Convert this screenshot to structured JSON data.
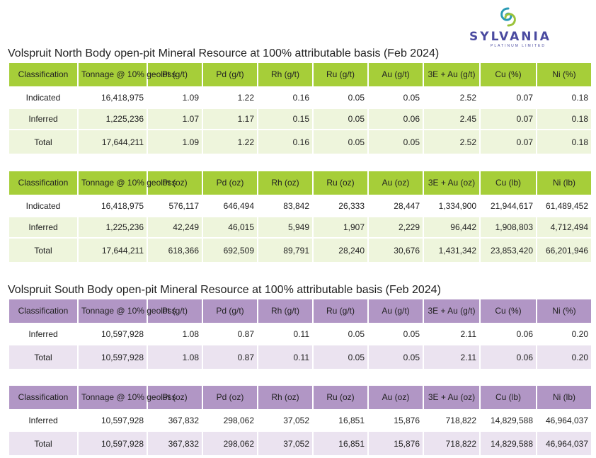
{
  "logo": {
    "brand": "SYLVANIA",
    "tagline": "PLATINUM LIMITED",
    "colors": {
      "swirl_green": "#9bc33b",
      "swirl_teal": "#2a9bb5",
      "text": "#4a4aa0"
    }
  },
  "north": {
    "title": "Volspruit North Body open-pit Mineral Resource at 100% attributable basis  (Feb 2024)",
    "grade_table": {
      "headers": [
        "Classification",
        "Tonnage @ 10% geoloss",
        "Pt (g/t)",
        "Pd (g/t)",
        "Rh (g/t)",
        "Ru (g/t)",
        "Au (g/t)",
        "3E + Au (g/t)",
        "Cu (%)",
        "Ni (%)"
      ],
      "rows": [
        [
          "Indicated",
          "16,418,975",
          "1.09",
          "1.22",
          "0.16",
          "0.05",
          "0.05",
          "2.52",
          "0.07",
          "0.18"
        ],
        [
          "Inferred",
          "1,225,236",
          "1.07",
          "1.17",
          "0.15",
          "0.05",
          "0.06",
          "2.45",
          "0.07",
          "0.18"
        ],
        [
          "Total",
          "17,644,211",
          "1.09",
          "1.22",
          "0.16",
          "0.05",
          "0.05",
          "2.52",
          "0.07",
          "0.18"
        ]
      ]
    },
    "content_table": {
      "headers": [
        "Classification",
        "Tonnage @ 10% geoloss",
        "Pt (oz)",
        "Pd (oz)",
        "Rh (oz)",
        "Ru (oz)",
        "Au (oz)",
        "3E + Au (oz)",
        "Cu (lb)",
        "Ni (lb)"
      ],
      "rows": [
        [
          "Indicated",
          "16,418,975",
          "576,117",
          "646,494",
          "83,842",
          "26,333",
          "28,447",
          "1,334,900",
          "21,944,617",
          "61,489,452"
        ],
        [
          "Inferred",
          "1,225,236",
          "42,249",
          "46,015",
          "5,949",
          "1,907",
          "2,229",
          "96,442",
          "1,908,803",
          "4,712,494"
        ],
        [
          "Total",
          "17,644,211",
          "618,366",
          "692,509",
          "89,791",
          "28,240",
          "30,676",
          "1,431,342",
          "23,853,420",
          "66,201,946"
        ]
      ]
    }
  },
  "south": {
    "title": "Volspruit South Body open-pit Mineral Resource at 100% attributable basis  (Feb 2024)",
    "grade_table": {
      "headers": [
        "Classification",
        "Tonnage @ 10% geoloss",
        "Pt (g/t)",
        "Pd (g/t)",
        "Rh (g/t)",
        "Ru (g/t)",
        "Au (g/t)",
        "3E + Au (g/t)",
        "Cu (%)",
        "Ni (%)"
      ],
      "rows": [
        [
          "Inferred",
          "10,597,928",
          "1.08",
          "0.87",
          "0.11",
          "0.05",
          "0.05",
          "2.11",
          "0.06",
          "0.20"
        ],
        [
          "Total",
          "10,597,928",
          "1.08",
          "0.87",
          "0.11",
          "0.05",
          "0.05",
          "2.11",
          "0.06",
          "0.20"
        ]
      ]
    },
    "content_table": {
      "headers": [
        "Classification",
        "Tonnage @ 10% geoloss",
        "Pt (oz)",
        "Pd (oz)",
        "Rh (oz)",
        "Ru (oz)",
        "Au (oz)",
        "3E + Au (oz)",
        "Cu (lb)",
        "Ni (lb)"
      ],
      "rows": [
        [
          "Inferred",
          "10,597,928",
          "367,832",
          "298,062",
          "37,052",
          "16,851",
          "15,876",
          "718,822",
          "14,829,588",
          "46,964,037"
        ],
        [
          "Total",
          "10,597,928",
          "367,832",
          "298,062",
          "37,052",
          "16,851",
          "15,876",
          "718,822",
          "14,829,588",
          "46,964,037"
        ]
      ]
    }
  },
  "theme": {
    "north_header": "#a6ce39",
    "north_row": "#eef5dc",
    "south_header": "#b196c5",
    "south_row": "#ebe3f0"
  }
}
